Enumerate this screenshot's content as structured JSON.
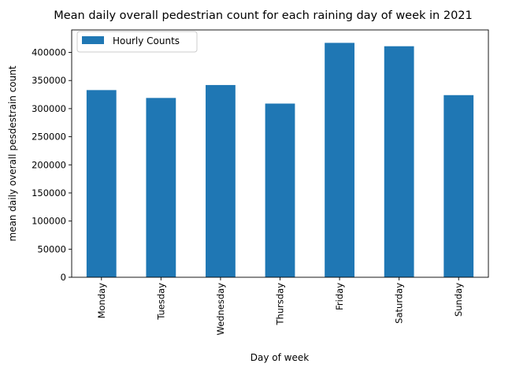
{
  "chart_data": {
    "type": "bar",
    "title": "Mean daily overall pedestrian count for each raining day of week in 2021",
    "xlabel": "Day of week",
    "ylabel": "mean daily overall pesdestrain count",
    "categories": [
      "Monday",
      "Tuesday",
      "Wednesday",
      "Thursday",
      "Friday",
      "Saturday",
      "Sunday"
    ],
    "series": [
      {
        "name": "Hourly Counts",
        "values": [
          333000,
          319000,
          342000,
          309000,
          417000,
          411000,
          324000
        ]
      }
    ],
    "ylim": [
      0,
      440000
    ],
    "yticks": [
      0,
      50000,
      100000,
      150000,
      200000,
      250000,
      300000,
      350000,
      400000
    ],
    "ytick_labels": [
      "0",
      "50000",
      "100000",
      "150000",
      "200000",
      "250000",
      "300000",
      "350000",
      "400000"
    ],
    "grid": false,
    "legend_position": "top-left",
    "bar_color": "#1f77b4"
  }
}
